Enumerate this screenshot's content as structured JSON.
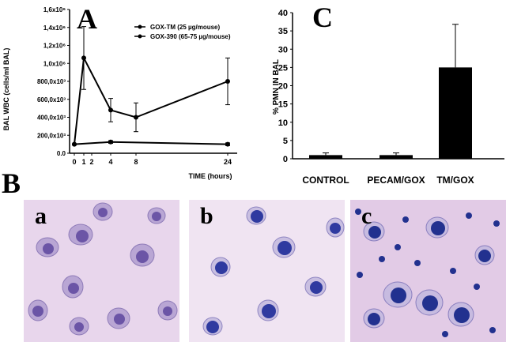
{
  "panels": {
    "a": "A",
    "b": "B",
    "c": "C"
  },
  "micrographs": [
    {
      "label": "a",
      "background": "#e6d3eb"
    },
    {
      "label": "b",
      "background": "#efe3f1"
    },
    {
      "label": "c",
      "background": "#e4cde7"
    }
  ],
  "chart_data": [
    {
      "type": "line",
      "title": "",
      "xlabel": "TIME (hours)",
      "ylabel": "BAL WBC (cells/ml BAL)",
      "xlim": [
        0,
        24
      ],
      "ylim": [
        0,
        1600000
      ],
      "x_ticks": [
        "0",
        "1",
        "2",
        "4",
        "8",
        "24"
      ],
      "y_ticks": [
        "0.0",
        "200,0x10³",
        "400,0x10³",
        "600,0x10³",
        "800,0x10³",
        "1,0x10⁶",
        "1,2x10⁶",
        "1,4x10⁶",
        "1,6x10⁶"
      ],
      "grid": false,
      "legend": "top-right",
      "series": [
        {
          "name": "GOX-TM (25 µg/mouse)",
          "x": [
            0,
            1,
            4,
            8,
            24
          ],
          "y": [
            100000,
            1060000,
            480000,
            400000,
            800000
          ],
          "err": [
            0,
            350000,
            130000,
            160000,
            260000
          ]
        },
        {
          "name": "GOX-390 (65-75 µg/mouse)",
          "x": [
            0,
            4,
            24
          ],
          "y": [
            100000,
            125000,
            100000
          ],
          "err": [
            0,
            15000,
            15000
          ]
        }
      ]
    },
    {
      "type": "bar",
      "title": "",
      "xlabel": "",
      "ylabel": "% PMN IN BAL",
      "categories": [
        "CONTROL",
        "PECAM/GOX",
        "TM/GOX"
      ],
      "values": [
        1,
        1,
        25
      ],
      "errors": [
        0.6,
        0.6,
        11.8
      ],
      "ylim": [
        0,
        40
      ],
      "y_ticks": [
        "0",
        "5",
        "10",
        "15",
        "20",
        "25",
        "30",
        "35",
        "40"
      ],
      "grid": false,
      "bar_color": "#000000"
    }
  ]
}
